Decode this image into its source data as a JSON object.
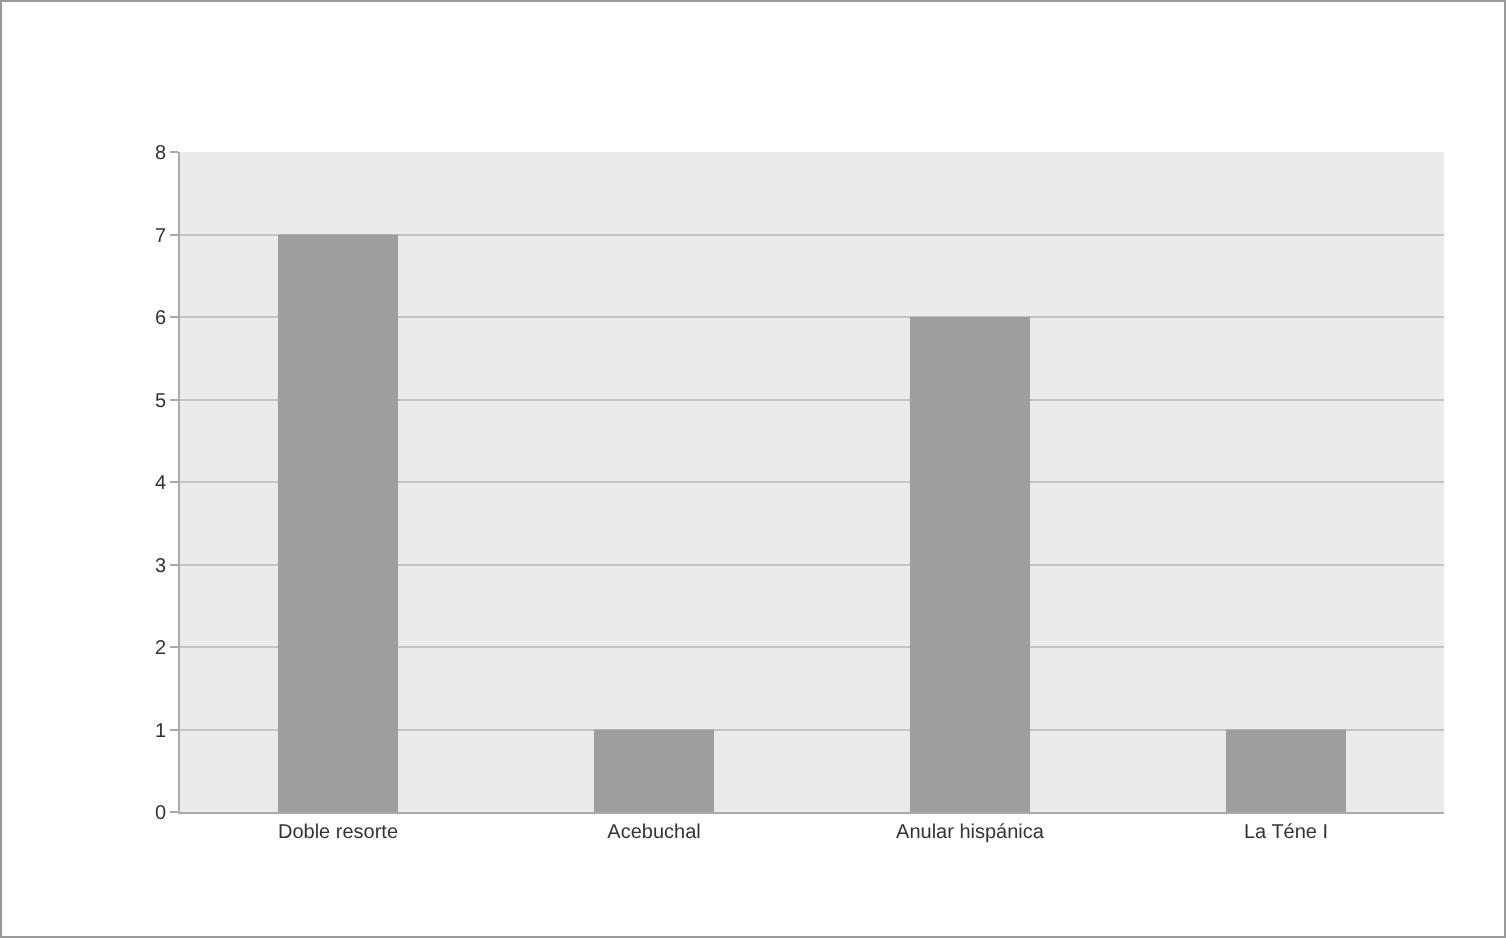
{
  "chart_data": {
    "type": "bar",
    "categories": [
      "Doble resorte",
      "Acebuchal",
      "Anular hispánica",
      "La Téne I"
    ],
    "values": [
      7,
      1,
      6,
      1
    ],
    "color": "#9d9ea0",
    "ylim": [
      0,
      8
    ],
    "yticks": [
      0,
      1,
      2,
      3,
      4,
      5,
      6,
      7,
      8
    ],
    "grid": "y"
  }
}
